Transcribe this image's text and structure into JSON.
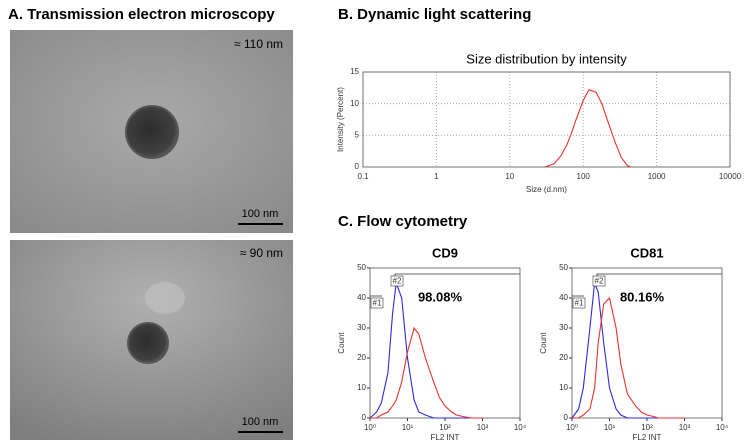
{
  "panels": {
    "a_title": "A. Transmission electron microscopy",
    "b_title": "B. Dynamic light scattering",
    "c_title": "C. Flow cytometry",
    "tem": [
      {
        "size": "≈ 110 nm",
        "scale": "100 nm"
      },
      {
        "size": "≈ 90 nm",
        "scale": "100 nm"
      }
    ]
  },
  "chart_data": [
    {
      "type": "line",
      "title": "Size distribution by intensity",
      "x_label": "Size (d.nm)",
      "y_label": "Intensity (Percent)",
      "log_x": true,
      "grid": true,
      "x": [
        30,
        40,
        50,
        60,
        70,
        80,
        100,
        120,
        150,
        180,
        220,
        270,
        330,
        400,
        450
      ],
      "series": [
        {
          "color": "#e8322d",
          "values": [
            0,
            0.5,
            1.8,
            3.5,
            5.5,
            7.5,
            10.5,
            12.2,
            11.8,
            10,
            7,
            4,
            1.5,
            0.2,
            0
          ]
        }
      ],
      "xlim": [
        0.1,
        10000
      ],
      "xticks": [
        0.1,
        1,
        10,
        100,
        1000,
        10000
      ],
      "ylim": [
        0,
        15
      ],
      "yticks": [
        0,
        5,
        10,
        15
      ]
    },
    {
      "type": "line",
      "title": "CD9",
      "x_label": "FL2 INT",
      "y_label": "Count",
      "annotation": "98.08%",
      "gates": [
        "#1",
        "#2"
      ],
      "log_x": true,
      "grid": false,
      "x": [
        1,
        1.5,
        2,
        3,
        4,
        5,
        7,
        10,
        15,
        20,
        30,
        50,
        70,
        100,
        150,
        200,
        300,
        500,
        700,
        1000
      ],
      "series": [
        {
          "color": "#2b2bd6",
          "values": [
            0,
            2,
            5,
            15,
            35,
            45,
            40,
            20,
            6,
            2,
            1,
            0,
            0,
            0,
            0,
            0,
            0,
            0,
            0,
            0
          ]
        },
        {
          "color": "#e8322d",
          "values": [
            0,
            0,
            1,
            2,
            4,
            6,
            12,
            22,
            30,
            28,
            20,
            12,
            7,
            4,
            2,
            1,
            0.5,
            0,
            0,
            0
          ]
        }
      ],
      "xlim": [
        1,
        10000
      ],
      "xticks": [
        {
          "value": 1,
          "label": "10⁰"
        },
        {
          "value": 10,
          "label": "10¹"
        },
        {
          "value": 100,
          "label": "10²"
        },
        {
          "value": 1000,
          "label": "10³"
        },
        {
          "value": 10000,
          "label": "10⁴"
        }
      ],
      "ylim": [
        0,
        50
      ],
      "yticks": [
        0,
        10,
        20,
        30,
        40,
        50
      ]
    },
    {
      "type": "line",
      "title": "CD81",
      "x_label": "FL2 INT",
      "y_label": "Count",
      "annotation": "80.16%",
      "gates": [
        "#1",
        "#2"
      ],
      "log_x": true,
      "grid": false,
      "x": [
        1,
        1.5,
        2,
        3,
        4,
        5,
        7,
        10,
        15,
        20,
        30,
        50,
        70,
        100,
        150,
        200,
        300,
        500,
        700,
        1000
      ],
      "series": [
        {
          "color": "#2b2bd6",
          "values": [
            0,
            3,
            10,
            30,
            45,
            42,
            25,
            10,
            3,
            1,
            0,
            0,
            0,
            0,
            0,
            0,
            0,
            0,
            0,
            0
          ]
        },
        {
          "color": "#e8322d",
          "values": [
            0,
            0,
            1,
            3,
            10,
            25,
            38,
            40,
            30,
            18,
            8,
            4,
            2,
            1,
            0.5,
            0,
            0,
            0,
            0,
            0
          ]
        }
      ],
      "xlim": [
        1,
        10000
      ],
      "xticks": [
        {
          "value": 1,
          "label": "10⁰"
        },
        {
          "value": 10,
          "label": "10¹"
        },
        {
          "value": 100,
          "label": "10²"
        },
        {
          "value": 1000,
          "label": "10³"
        },
        {
          "value": 10000,
          "label": "10⁴"
        }
      ],
      "ylim": [
        0,
        50
      ],
      "yticks": [
        0,
        10,
        20,
        30,
        40,
        50
      ]
    }
  ]
}
